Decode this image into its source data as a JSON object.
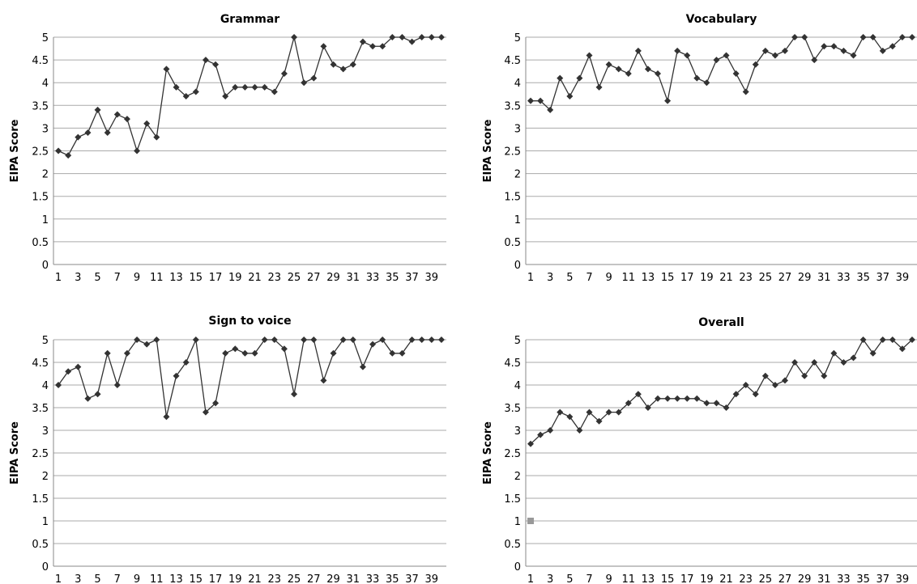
{
  "chart_data": [
    {
      "type": "line",
      "title": "Grammar",
      "xlabel": "",
      "ylabel": "EIPA Score",
      "ylim": [
        0,
        5
      ],
      "yticks": [
        "0",
        "0.5",
        "1",
        "1.5",
        "2",
        "2.5",
        "3",
        "3.5",
        "4",
        "4.5",
        "5"
      ],
      "xticks": [
        "1",
        "3",
        "5",
        "7",
        "9",
        "11",
        "13",
        "15",
        "17",
        "19",
        "21",
        "23",
        "25",
        "27",
        "29",
        "31",
        "33",
        "35",
        "37",
        "39"
      ],
      "grid": "horizontal",
      "x": [
        1,
        2,
        3,
        4,
        5,
        6,
        7,
        8,
        9,
        10,
        11,
        12,
        13,
        14,
        15,
        16,
        17,
        18,
        19,
        20,
        21,
        22,
        23,
        24,
        25,
        26,
        27,
        28,
        29,
        30,
        31,
        32,
        33,
        34,
        35,
        36,
        37,
        38,
        39,
        40
      ],
      "series": [
        {
          "values": [
            2.5,
            2.4,
            2.8,
            2.9,
            3.4,
            2.9,
            3.3,
            3.2,
            2.5,
            3.1,
            2.8,
            4.3,
            3.9,
            3.7,
            3.8,
            4.5,
            4.4,
            3.7,
            3.9,
            3.9,
            3.9,
            3.9,
            3.8,
            4.2,
            5.0,
            4.0,
            4.1,
            4.8,
            4.4,
            4.3,
            4.4,
            4.9,
            4.8,
            4.8,
            5.0,
            5.0,
            4.9,
            5.0,
            5.0,
            5.0
          ]
        }
      ]
    },
    {
      "type": "line",
      "title": "Vocabulary",
      "xlabel": "",
      "ylabel": "EIPA Score",
      "ylim": [
        0,
        5
      ],
      "yticks": [
        "0",
        "0.5",
        "1",
        "1.5",
        "2",
        "2.5",
        "3",
        "3.5",
        "4",
        "4.5",
        "5"
      ],
      "xticks": [
        "1",
        "3",
        "5",
        "7",
        "9",
        "11",
        "13",
        "15",
        "17",
        "19",
        "21",
        "23",
        "25",
        "27",
        "29",
        "31",
        "33",
        "35",
        "37",
        "39"
      ],
      "grid": "horizontal",
      "x": [
        1,
        2,
        3,
        4,
        5,
        6,
        7,
        8,
        9,
        10,
        11,
        12,
        13,
        14,
        15,
        16,
        17,
        18,
        19,
        20,
        21,
        22,
        23,
        24,
        25,
        26,
        27,
        28,
        29,
        30,
        31,
        32,
        33,
        34,
        35,
        36,
        37,
        38,
        39,
        40
      ],
      "series": [
        {
          "values": [
            3.6,
            3.6,
            3.4,
            4.1,
            3.7,
            4.1,
            4.6,
            3.9,
            4.4,
            4.3,
            4.2,
            4.7,
            4.3,
            4.2,
            3.6,
            4.7,
            4.6,
            4.1,
            4.0,
            4.5,
            4.6,
            4.2,
            3.8,
            4.4,
            4.7,
            4.6,
            4.7,
            5.0,
            5.0,
            4.5,
            4.8,
            4.8,
            4.7,
            4.6,
            5.0,
            5.0,
            4.7,
            4.8,
            5.0,
            5.0
          ]
        }
      ]
    },
    {
      "type": "line",
      "title": "Sign to voice",
      "xlabel": "",
      "ylabel": "EIPA Score",
      "ylim": [
        0,
        5
      ],
      "yticks": [
        "0",
        "0.5",
        "1",
        "1.5",
        "2",
        "2.5",
        "3",
        "3.5",
        "4",
        "4.5",
        "5"
      ],
      "xticks": [
        "1",
        "3",
        "5",
        "7",
        "9",
        "11",
        "13",
        "15",
        "17",
        "19",
        "21",
        "23",
        "25",
        "27",
        "29",
        "31",
        "33",
        "35",
        "37",
        "39"
      ],
      "grid": "horizontal",
      "x": [
        1,
        2,
        3,
        4,
        5,
        6,
        7,
        8,
        9,
        10,
        11,
        12,
        13,
        14,
        15,
        16,
        17,
        18,
        19,
        20,
        21,
        22,
        23,
        24,
        25,
        26,
        27,
        28,
        29,
        30,
        31,
        32,
        33,
        34,
        35,
        36,
        37,
        38,
        39,
        40
      ],
      "series": [
        {
          "values": [
            4.0,
            4.3,
            4.4,
            3.7,
            3.8,
            4.7,
            4.0,
            4.7,
            5.0,
            4.9,
            5.0,
            3.3,
            4.2,
            4.5,
            5.0,
            3.4,
            3.6,
            4.7,
            4.8,
            4.7,
            4.7,
            5.0,
            5.0,
            4.8,
            3.8,
            5.0,
            5.0,
            4.1,
            4.7,
            5.0,
            5.0,
            4.4,
            4.9,
            5.0,
            4.7,
            4.7,
            5.0,
            5.0,
            5.0,
            5.0
          ]
        }
      ]
    },
    {
      "type": "line",
      "title": "Overall",
      "xlabel": "",
      "ylabel": "EIPA Score",
      "ylim": [
        0,
        5
      ],
      "yticks": [
        "0",
        "0.5",
        "1",
        "1.5",
        "2",
        "2.5",
        "3",
        "3.5",
        "4",
        "4.5",
        "5"
      ],
      "xticks": [
        "1",
        "3",
        "5",
        "7",
        "9",
        "11",
        "13",
        "15",
        "17",
        "19",
        "21",
        "23",
        "25",
        "27",
        "29",
        "31",
        "33",
        "35",
        "37",
        "39"
      ],
      "grid": "horizontal",
      "x": [
        1,
        2,
        3,
        4,
        5,
        6,
        7,
        8,
        9,
        10,
        11,
        12,
        13,
        14,
        15,
        16,
        17,
        18,
        19,
        20,
        21,
        22,
        23,
        24,
        25,
        26,
        27,
        28,
        29,
        30,
        31,
        32,
        33,
        34,
        35,
        36,
        37,
        38,
        39,
        40
      ],
      "series": [
        {
          "values": [
            2.7,
            2.9,
            3.0,
            3.4,
            3.3,
            3.0,
            3.4,
            3.2,
            3.4,
            3.4,
            3.6,
            3.8,
            3.5,
            3.7,
            3.7,
            3.7,
            3.7,
            3.7,
            3.6,
            3.6,
            3.5,
            3.8,
            4.0,
            3.8,
            4.2,
            4.0,
            4.1,
            4.5,
            4.2,
            4.5,
            4.2,
            4.7,
            4.5,
            4.6,
            5.0,
            4.7,
            5.0,
            5.0,
            4.8,
            5.0
          ]
        }
      ],
      "extra_point": {
        "x": 1,
        "y": 1.0,
        "color": "#999999"
      }
    }
  ],
  "colors": {
    "line": "#333333",
    "marker": "#333333",
    "grid": "#aaaaaa",
    "axis": "#888888"
  }
}
